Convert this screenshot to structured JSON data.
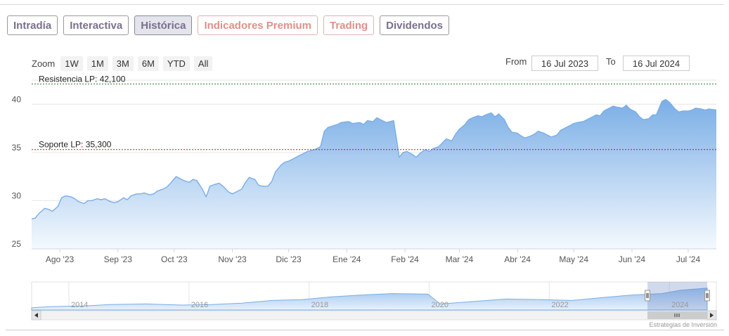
{
  "tabs": [
    {
      "label": "Intradía",
      "state": "normal"
    },
    {
      "label": "Interactiva",
      "state": "normal"
    },
    {
      "label": "Histórica",
      "state": "active"
    },
    {
      "label": "Indicadores Premium",
      "state": "premium"
    },
    {
      "label": "Trading",
      "state": "premium"
    },
    {
      "label": "Dividendos",
      "state": "normal"
    }
  ],
  "zoom": {
    "label": "Zoom",
    "buttons": [
      "1W",
      "1M",
      "3M",
      "6M",
      "YTD",
      "All"
    ]
  },
  "range": {
    "from_label": "From",
    "from_value": "16 Jul 2023",
    "to_label": "To",
    "to_value": "16 Jul 2024"
  },
  "credit": "Estrategias de Inversión",
  "colors": {
    "area_top": "#7aaee6",
    "area_bottom": "#f4f9fe",
    "line": "#7aaee6",
    "resist": "#2e7d32",
    "support": "#b71c1c",
    "tab_text": "#7a6f8e",
    "premium_text": "#e08f8a"
  },
  "chart_data": {
    "type": "area",
    "ylim": [
      25,
      42.5
    ],
    "yticks": [
      25,
      30,
      35,
      40
    ],
    "xticks": [
      "Ago '23",
      "Sep '23",
      "Oct '23",
      "Nov '23",
      "Dic '23",
      "Ene '24",
      "Feb '24",
      "Mar '24",
      "Abr '24",
      "May '24",
      "Jun '24",
      "Jul '24"
    ],
    "x_start": "2023-07-17",
    "x_end": "2024-07-16",
    "annotations": [
      {
        "label": "Resistencia LP: 42,100",
        "value": 42.1,
        "color": "#2e7d32"
      },
      {
        "label": "Soporte LP: 35,300",
        "value": 35.3,
        "color": "#b71c1c"
      }
    ],
    "series": [
      {
        "name": "",
        "points": [
          [
            "2023-07-17",
            28.1
          ],
          [
            "2023-07-19",
            28.2
          ],
          [
            "2023-07-21",
            28.7
          ],
          [
            "2023-07-24",
            29.2
          ],
          [
            "2023-07-26",
            29.1
          ],
          [
            "2023-07-28",
            28.9
          ],
          [
            "2023-07-31",
            29.4
          ],
          [
            "2023-08-02",
            30.3
          ],
          [
            "2023-08-04",
            30.5
          ],
          [
            "2023-08-07",
            30.4
          ],
          [
            "2023-08-09",
            30.2
          ],
          [
            "2023-08-11",
            29.9
          ],
          [
            "2023-08-14",
            29.7
          ],
          [
            "2023-08-16",
            30.0
          ],
          [
            "2023-08-18",
            30.0
          ],
          [
            "2023-08-21",
            30.2
          ],
          [
            "2023-08-23",
            30.1
          ],
          [
            "2023-08-25",
            30.2
          ],
          [
            "2023-08-28",
            29.9
          ],
          [
            "2023-08-30",
            29.8
          ],
          [
            "2023-09-01",
            29.9
          ],
          [
            "2023-09-04",
            30.3
          ],
          [
            "2023-09-06",
            30.1
          ],
          [
            "2023-09-08",
            30.5
          ],
          [
            "2023-09-11",
            30.7
          ],
          [
            "2023-09-13",
            30.7
          ],
          [
            "2023-09-15",
            30.8
          ],
          [
            "2023-09-18",
            30.6
          ],
          [
            "2023-09-20",
            30.7
          ],
          [
            "2023-09-22",
            31.0
          ],
          [
            "2023-09-25",
            31.2
          ],
          [
            "2023-09-27",
            31.4
          ],
          [
            "2023-09-29",
            31.8
          ],
          [
            "2023-10-02",
            32.5
          ],
          [
            "2023-10-04",
            32.3
          ],
          [
            "2023-10-06",
            32.1
          ],
          [
            "2023-10-09",
            31.9
          ],
          [
            "2023-10-11",
            32.2
          ],
          [
            "2023-10-13",
            32.1
          ],
          [
            "2023-10-16",
            31.2
          ],
          [
            "2023-10-18",
            30.4
          ],
          [
            "2023-10-19",
            30.9
          ],
          [
            "2023-10-20",
            31.5
          ],
          [
            "2023-10-23",
            31.7
          ],
          [
            "2023-10-25",
            31.8
          ],
          [
            "2023-10-27",
            31.5
          ],
          [
            "2023-10-30",
            30.9
          ],
          [
            "2023-11-01",
            30.7
          ],
          [
            "2023-11-03",
            30.9
          ],
          [
            "2023-11-06",
            31.2
          ],
          [
            "2023-11-08",
            31.9
          ],
          [
            "2023-11-10",
            32.4
          ],
          [
            "2023-11-13",
            32.2
          ],
          [
            "2023-11-15",
            31.6
          ],
          [
            "2023-11-17",
            31.5
          ],
          [
            "2023-11-20",
            31.5
          ],
          [
            "2023-11-22",
            32.0
          ],
          [
            "2023-11-24",
            33.0
          ],
          [
            "2023-11-27",
            33.7
          ],
          [
            "2023-11-29",
            34.0
          ],
          [
            "2023-12-01",
            34.1
          ],
          [
            "2023-12-04",
            34.4
          ],
          [
            "2023-12-06",
            34.6
          ],
          [
            "2023-12-08",
            34.8
          ],
          [
            "2023-12-11",
            35.1
          ],
          [
            "2023-12-13",
            35.2
          ],
          [
            "2023-12-15",
            35.3
          ],
          [
            "2023-12-18",
            35.6
          ],
          [
            "2023-12-20",
            37.2
          ],
          [
            "2023-12-22",
            37.6
          ],
          [
            "2023-12-27",
            37.9
          ],
          [
            "2023-12-29",
            38.1
          ],
          [
            "2024-01-02",
            38.2
          ],
          [
            "2024-01-04",
            38.0
          ],
          [
            "2024-01-08",
            38.1
          ],
          [
            "2024-01-10",
            37.9
          ],
          [
            "2024-01-12",
            38.3
          ],
          [
            "2024-01-15",
            38.2
          ],
          [
            "2024-01-17",
            38.6
          ],
          [
            "2024-01-19",
            38.4
          ],
          [
            "2024-01-22",
            38.1
          ],
          [
            "2024-01-24",
            38.2
          ],
          [
            "2024-01-26",
            38.3
          ],
          [
            "2024-01-29",
            34.5
          ],
          [
            "2024-01-31",
            35.0
          ],
          [
            "2024-02-02",
            35.1
          ],
          [
            "2024-02-05",
            34.8
          ],
          [
            "2024-02-07",
            34.5
          ],
          [
            "2024-02-09",
            34.9
          ],
          [
            "2024-02-12",
            35.3
          ],
          [
            "2024-02-14",
            35.1
          ],
          [
            "2024-02-16",
            35.4
          ],
          [
            "2024-02-19",
            35.6
          ],
          [
            "2024-02-21",
            36.0
          ],
          [
            "2024-02-23",
            36.4
          ],
          [
            "2024-02-26",
            36.2
          ],
          [
            "2024-02-28",
            36.9
          ],
          [
            "2024-03-01",
            37.4
          ],
          [
            "2024-03-04",
            37.9
          ],
          [
            "2024-03-06",
            38.4
          ],
          [
            "2024-03-08",
            38.6
          ],
          [
            "2024-03-11",
            38.8
          ],
          [
            "2024-03-13",
            38.7
          ],
          [
            "2024-03-15",
            38.9
          ],
          [
            "2024-03-18",
            39.1
          ],
          [
            "2024-03-20",
            38.7
          ],
          [
            "2024-03-22",
            39.0
          ],
          [
            "2024-03-25",
            38.4
          ],
          [
            "2024-03-27",
            37.6
          ],
          [
            "2024-03-29",
            37.1
          ],
          [
            "2024-04-01",
            37.0
          ],
          [
            "2024-04-03",
            36.7
          ],
          [
            "2024-04-05",
            36.5
          ],
          [
            "2024-04-08",
            36.7
          ],
          [
            "2024-04-10",
            36.9
          ],
          [
            "2024-04-12",
            37.2
          ],
          [
            "2024-04-15",
            37.0
          ],
          [
            "2024-04-17",
            36.8
          ],
          [
            "2024-04-19",
            36.6
          ],
          [
            "2024-04-22",
            36.8
          ],
          [
            "2024-04-24",
            37.3
          ],
          [
            "2024-04-26",
            37.5
          ],
          [
            "2024-04-29",
            37.8
          ],
          [
            "2024-05-01",
            38.0
          ],
          [
            "2024-05-03",
            38.1
          ],
          [
            "2024-05-06",
            38.2
          ],
          [
            "2024-05-08",
            38.4
          ],
          [
            "2024-05-10",
            38.6
          ],
          [
            "2024-05-13",
            38.9
          ],
          [
            "2024-05-15",
            38.8
          ],
          [
            "2024-05-17",
            39.3
          ],
          [
            "2024-05-20",
            39.6
          ],
          [
            "2024-05-22",
            39.8
          ],
          [
            "2024-05-24",
            39.7
          ],
          [
            "2024-05-27",
            39.6
          ],
          [
            "2024-05-29",
            39.9
          ],
          [
            "2024-05-31",
            39.5
          ],
          [
            "2024-06-03",
            39.2
          ],
          [
            "2024-06-05",
            38.7
          ],
          [
            "2024-06-07",
            38.4
          ],
          [
            "2024-06-10",
            38.5
          ],
          [
            "2024-06-12",
            38.9
          ],
          [
            "2024-06-14",
            38.9
          ],
          [
            "2024-06-17",
            40.3
          ],
          [
            "2024-06-19",
            40.5
          ],
          [
            "2024-06-21",
            40.2
          ],
          [
            "2024-06-24",
            39.5
          ],
          [
            "2024-06-26",
            39.2
          ],
          [
            "2024-06-28",
            39.3
          ],
          [
            "2024-07-01",
            39.3
          ],
          [
            "2024-07-03",
            39.4
          ],
          [
            "2024-07-05",
            39.6
          ],
          [
            "2024-07-08",
            39.5
          ],
          [
            "2024-07-10",
            39.4
          ],
          [
            "2024-07-12",
            39.5
          ],
          [
            "2024-07-16",
            39.4
          ]
        ]
      }
    ],
    "navigator": {
      "labels": [
        "2014",
        "2016",
        "2018",
        "2020",
        "2022",
        "2024"
      ]
    }
  }
}
